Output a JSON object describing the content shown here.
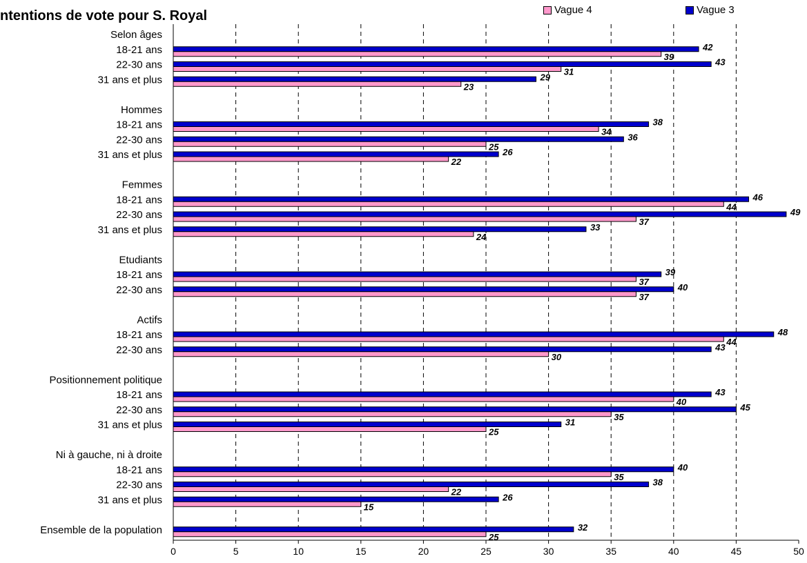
{
  "chart_data": {
    "type": "bar",
    "orientation": "horizontal",
    "title": "ntentions de vote pour S. Royal",
    "xlim": [
      0,
      50
    ],
    "x_ticks": [
      "0",
      "5",
      "10",
      "15",
      "20",
      "25",
      "30",
      "35",
      "40",
      "45",
      "50"
    ],
    "grid": "vertical dashed",
    "legend_position": "top-right",
    "series": [
      {
        "name": "Vague 4",
        "color": "#ff99cc"
      },
      {
        "name": "Vague 3",
        "color": "#0000cc"
      }
    ],
    "rows": [
      {
        "label": "Selon âges",
        "header": true
      },
      {
        "label": "18-21 ans",
        "vague3": 42,
        "vague4": 39,
        "vague3_label": "42",
        "vague4_label": "39"
      },
      {
        "label": "22-30 ans",
        "vague3": 43,
        "vague4": 31,
        "vague3_label": "43",
        "vague4_label": "31"
      },
      {
        "label": "31 ans et plus",
        "vague3": 29,
        "vague4": 23,
        "vague3_label": "29",
        "vague4_label": "23"
      },
      {
        "label": "",
        "spacer": true
      },
      {
        "label": "Hommes",
        "header": true
      },
      {
        "label": "18-21 ans",
        "vague3": 38,
        "vague4": 34,
        "vague3_label": "38",
        "vague4_label": "34"
      },
      {
        "label": "22-30 ans",
        "vague3": 36,
        "vague4": 25,
        "vague3_label": "36",
        "vague4_label": "25"
      },
      {
        "label": "31 ans et plus",
        "vague3": 26,
        "vague4": 22,
        "vague3_label": "26",
        "vague4_label": "22"
      },
      {
        "label": "",
        "spacer": true
      },
      {
        "label": "Femmes",
        "header": true
      },
      {
        "label": "18-21 ans",
        "vague3": 46,
        "vague4": 44,
        "vague3_label": "46",
        "vague4_label": "44"
      },
      {
        "label": "22-30 ans",
        "vague3": 49,
        "vague4": 37,
        "vague3_label": "49",
        "vague4_label": "37"
      },
      {
        "label": "31 ans et plus",
        "vague3": 33,
        "vague4": 24,
        "vague3_label": "33",
        "vague4_label": "24"
      },
      {
        "label": "",
        "spacer": true
      },
      {
        "label": "Etudiants",
        "header": true
      },
      {
        "label": "18-21 ans",
        "vague3": 39,
        "vague4": 37,
        "vague3_label": "39",
        "vague4_label": "37"
      },
      {
        "label": "22-30 ans",
        "vague3": 40,
        "vague4": 37,
        "vague3_label": "40",
        "vague4_label": "37"
      },
      {
        "label": "",
        "spacer": true
      },
      {
        "label": "Actifs",
        "header": true
      },
      {
        "label": "18-21 ans",
        "vague3": 48,
        "vague4": 44,
        "vague3_label": "48",
        "vague4_label": "44"
      },
      {
        "label": "22-30 ans",
        "vague3": 43,
        "vague4": 30,
        "vague3_label": "43",
        "vague4_label": "30"
      },
      {
        "label": "",
        "spacer": true
      },
      {
        "label": "Positionnement politique",
        "header": true
      },
      {
        "label": "18-21 ans",
        "vague3": 43,
        "vague4": 40,
        "vague3_label": "43",
        "vague4_label": "40"
      },
      {
        "label": "22-30 ans",
        "vague3": 45,
        "vague4": 35,
        "vague3_label": "45",
        "vague4_label": "35"
      },
      {
        "label": "31 ans et plus",
        "vague3": 31,
        "vague4": 25,
        "vague3_label": "31",
        "vague4_label": "25"
      },
      {
        "label": "",
        "spacer": true
      },
      {
        "label": "Ni à gauche, ni à droite",
        "header": true
      },
      {
        "label": "18-21 ans",
        "vague3": 40,
        "vague4": 35,
        "vague3_label": "40",
        "vague4_label": "35"
      },
      {
        "label": "22-30 ans",
        "vague3": 38,
        "vague4": 22,
        "vague3_label": "38",
        "vague4_label": "22"
      },
      {
        "label": "31 ans et plus",
        "vague3": 26,
        "vague4": 15,
        "vague3_label": "26",
        "vague4_label": "15"
      },
      {
        "label": "",
        "spacer": true
      },
      {
        "label": "Ensemble de la population",
        "vague3": 32,
        "vague4": 25,
        "vague3_label": "32",
        "vague4_label": "25"
      }
    ]
  }
}
